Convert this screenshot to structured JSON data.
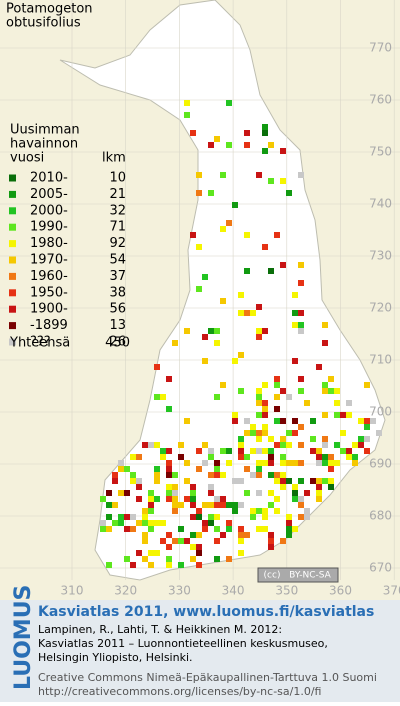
{
  "title": [
    "Potamogeton",
    "obtusifolius"
  ],
  "legend": {
    "heading": [
      "Uusimman",
      "havainnon",
      "vuosi"
    ],
    "count_heading": "lkm",
    "items": [
      {
        "label": "2010-",
        "count": 10,
        "color": "#0a6e0a"
      },
      {
        "label": "2005-",
        "count": 21,
        "color": "#119a11"
      },
      {
        "label": "2000-",
        "count": 32,
        "color": "#22c422"
      },
      {
        "label": "1990-",
        "count": 71,
        "color": "#5ee61e"
      },
      {
        "label": "1980-",
        "count": 92,
        "color": "#f5f500"
      },
      {
        "label": "1970-",
        "count": 54,
        "color": "#f5c800"
      },
      {
        "label": "1960-",
        "count": 37,
        "color": "#f07814"
      },
      {
        "label": "1950-",
        "count": 38,
        "color": "#e63214"
      },
      {
        "label": "1900-",
        "count": 56,
        "color": "#c81414"
      },
      {
        "label": "-1899",
        "count": 13,
        "color": "#780000"
      },
      {
        "label": "???",
        "count": 26,
        "color": "#c8c8c8"
      }
    ],
    "total": {
      "label": "Yhteensä",
      "count": 450
    }
  },
  "y_axis": [
    770,
    760,
    750,
    740,
    730,
    720,
    710,
    700,
    690,
    680,
    670
  ],
  "x_axis": [
    310,
    320,
    330,
    340,
    350,
    360,
    370
  ],
  "license_badge": "BY-NC-SA",
  "footer": {
    "logo": "LUOMUS",
    "link": "Kasviatlas 2011, www.luomus.fi/kasviatlas",
    "citation": [
      "Lampinen, R., Lahti, T. & Heikkinen M. 2012:",
      "Kasviatlas 2011 – Luonnontieteellinen keskusmuseo,",
      "Helsingin Yliopisto, Helsinki."
    ],
    "license": [
      "Creative Commons Nimeä-Epäkaupallinen-Tarttuva 1.0 Suomi",
      "http://creativecommons.org/licenses/by-nc-sa/1.0/fi"
    ]
  }
}
